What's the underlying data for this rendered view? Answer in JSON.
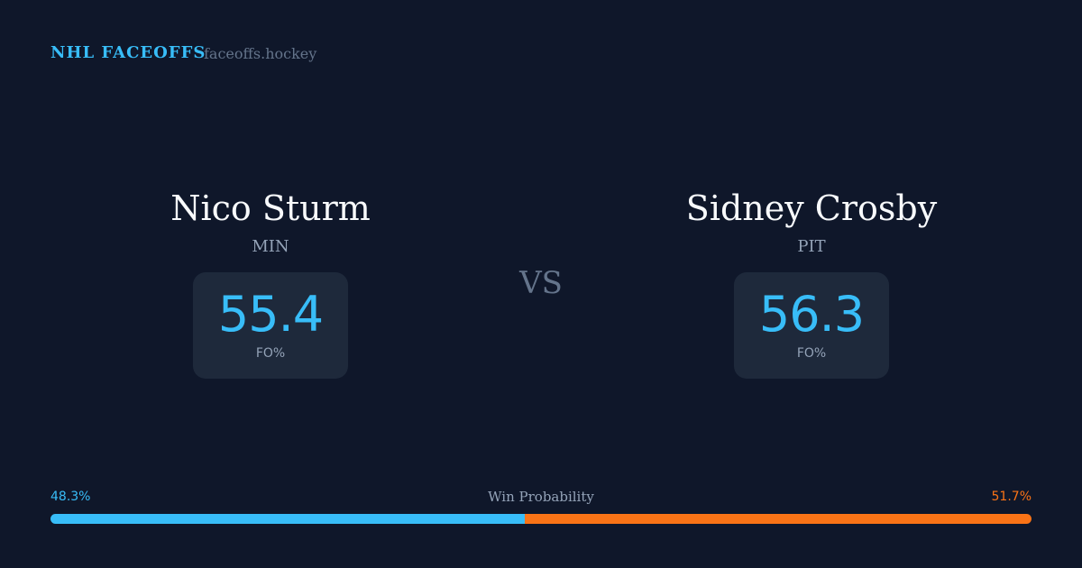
{
  "header": {
    "title": "NHL FACEOFFS",
    "site": "faceoffs.hockey"
  },
  "players": [
    {
      "name": "Nico Sturm",
      "team": "MIN",
      "fo_pct": 55.4,
      "stat_label": "FO%"
    },
    {
      "name": "Sidney Crosby",
      "team": "PIT",
      "fo_pct": 56.3,
      "stat_label": "FO%"
    }
  ],
  "versus": "VS",
  "win_probability": {
    "label": "Win Probability",
    "left": {
      "value": 48.3,
      "label": "48.3%"
    },
    "right": {
      "value": 51.7,
      "label": "51.7%"
    }
  }
}
